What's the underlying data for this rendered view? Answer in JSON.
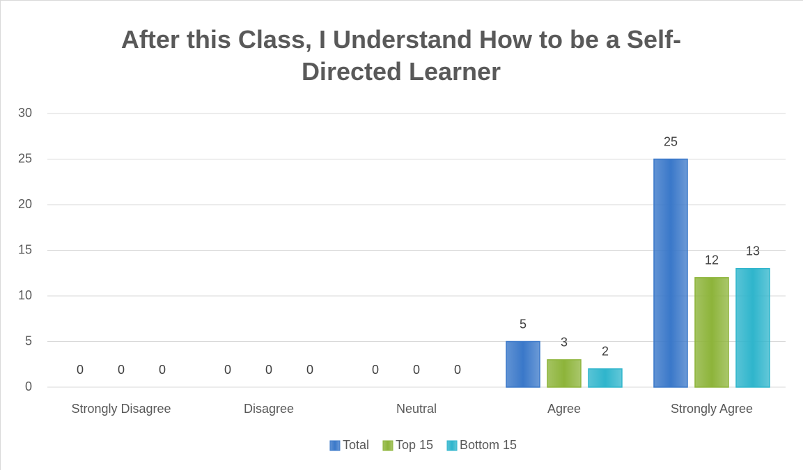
{
  "chart_data": {
    "type": "bar",
    "title": "After this Class, I Understand How to be a Self-Directed Learner",
    "categories": [
      "Strongly Disagree",
      "Disagree",
      "Neutral",
      "Agree",
      "Strongly Agree"
    ],
    "series": [
      {
        "name": "Total",
        "color": "#3a78c9",
        "values": [
          0,
          0,
          0,
          5,
          25
        ]
      },
      {
        "name": "Top 15",
        "color": "#8db43a",
        "values": [
          0,
          0,
          0,
          3,
          12
        ]
      },
      {
        "name": "Bottom 15",
        "color": "#2fb5cc",
        "values": [
          0,
          0,
          0,
          2,
          13
        ]
      }
    ],
    "ylim": [
      0,
      30
    ],
    "yticks": [
      0,
      5,
      10,
      15,
      20,
      25,
      30
    ],
    "grid": true,
    "legend": "bottom"
  }
}
